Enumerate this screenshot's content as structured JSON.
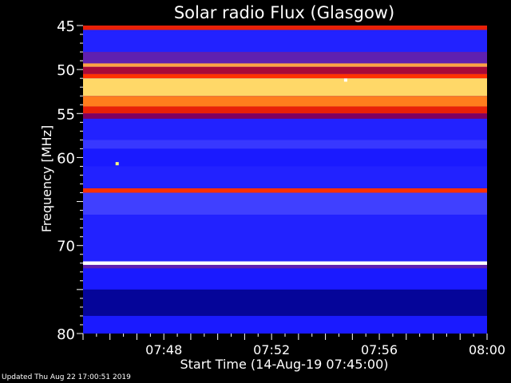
{
  "chart_data": {
    "type": "heatmap",
    "title": "Solar radio Flux (Glasgow)",
    "xlabel": "Start Time (14-Aug-19 07:45:00)",
    "ylabel": "Frequency [MHz]",
    "xlim": [
      "07:45:00",
      "08:00:00"
    ],
    "ylim": [
      45,
      80
    ],
    "y_inverted": true,
    "yticks": [
      45,
      50,
      55,
      60,
      70,
      80
    ],
    "ytick_labels": [
      "45",
      "50",
      "55",
      "60",
      "70",
      "80"
    ],
    "xticks": [
      "07:48",
      "07:52",
      "07:56",
      "08:00"
    ],
    "xtick_labels": [
      "07:48",
      "07:52",
      "07:56",
      "08:00"
    ],
    "colormap": [
      "#000010",
      "#000080",
      "#1a1aff",
      "#4040ff",
      "#800060",
      "#d01010",
      "#ff3000",
      "#ff7010",
      "#ffb050",
      "#ffff80",
      "#ffffff"
    ],
    "bands": [
      {
        "from": 45.0,
        "to": 45.5,
        "level": 0.55
      },
      {
        "from": 45.5,
        "to": 48.0,
        "level": 0.22
      },
      {
        "from": 48.0,
        "to": 49.3,
        "level": 0.35
      },
      {
        "from": 49.3,
        "to": 49.7,
        "level": 0.78
      },
      {
        "from": 49.7,
        "to": 50.5,
        "level": 0.45
      },
      {
        "from": 50.5,
        "to": 51.0,
        "level": 0.6
      },
      {
        "from": 51.0,
        "to": 53.0,
        "level": 0.85
      },
      {
        "from": 53.0,
        "to": 54.2,
        "level": 0.72
      },
      {
        "from": 54.2,
        "to": 55.0,
        "level": 0.55
      },
      {
        "from": 55.0,
        "to": 55.6,
        "level": 0.4
      },
      {
        "from": 55.6,
        "to": 58.0,
        "level": 0.22
      },
      {
        "from": 58.0,
        "to": 59.0,
        "level": 0.28
      },
      {
        "from": 59.0,
        "to": 61.0,
        "level": 0.2
      },
      {
        "from": 61.0,
        "to": 63.5,
        "level": 0.22
      },
      {
        "from": 63.5,
        "to": 64.0,
        "level": 0.6
      },
      {
        "from": 64.0,
        "to": 66.5,
        "level": 0.3
      },
      {
        "from": 66.5,
        "to": 71.8,
        "level": 0.22
      },
      {
        "from": 71.8,
        "to": 72.2,
        "level": 1.0
      },
      {
        "from": 72.2,
        "to": 72.6,
        "level": 0.35
      },
      {
        "from": 72.6,
        "to": 75.0,
        "level": 0.2
      },
      {
        "from": 75.0,
        "to": 78.0,
        "level": 0.12
      },
      {
        "from": 78.0,
        "to": 80.0,
        "level": 0.2
      }
    ],
    "spots": [
      {
        "time": "07:46:16",
        "freq": 60.7,
        "level": 0.9
      },
      {
        "time": "07:54:45",
        "freq": 51.2,
        "level": 1.0
      }
    ]
  },
  "footer": {
    "updated": "Updated Thu Aug 22 17:00:51 2019"
  }
}
